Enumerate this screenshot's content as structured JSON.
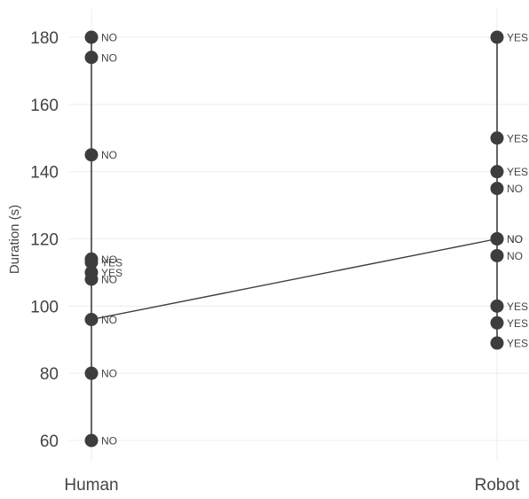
{
  "chart_data": {
    "type": "scatter",
    "title": "",
    "xlabel": "",
    "ylabel": "Duration (s)",
    "ylim": [
      52,
      186
    ],
    "yticks": [
      60,
      80,
      100,
      120,
      140,
      160,
      180
    ],
    "categories": [
      "Human",
      "Robot"
    ],
    "grid": true,
    "legend": "none",
    "series": [
      {
        "category": "Human",
        "points": [
          {
            "y": 180,
            "label": "NO"
          },
          {
            "y": 174,
            "label": "NO"
          },
          {
            "y": 145,
            "label": "NO"
          },
          {
            "y": 114,
            "label": "NO"
          },
          {
            "y": 113,
            "label": "YES"
          },
          {
            "y": 110,
            "label": "YES"
          },
          {
            "y": 108,
            "label": "NO"
          },
          {
            "y": 96,
            "label": "NO"
          },
          {
            "y": 80,
            "label": "NO"
          },
          {
            "y": 60,
            "label": "NO"
          }
        ]
      },
      {
        "category": "Robot",
        "points": [
          {
            "y": 180,
            "label": "YES"
          },
          {
            "y": 150,
            "label": "YES"
          },
          {
            "y": 140,
            "label": "YES"
          },
          {
            "y": 135,
            "label": "NO"
          },
          {
            "y": 120,
            "label": "NO"
          },
          {
            "y": 120,
            "label": "NO"
          },
          {
            "y": 115,
            "label": "NO"
          },
          {
            "y": 100,
            "label": "YES"
          },
          {
            "y": 95,
            "label": "YES"
          },
          {
            "y": 89,
            "label": "YES"
          }
        ]
      }
    ],
    "trend": {
      "from": {
        "category": "Human",
        "y": 96
      },
      "to": {
        "category": "Robot",
        "y": 120
      }
    },
    "colors": {
      "marker": "#3d3d3d",
      "line": "#3d3d3d",
      "grid": "#ececec",
      "text": "#444444"
    }
  }
}
